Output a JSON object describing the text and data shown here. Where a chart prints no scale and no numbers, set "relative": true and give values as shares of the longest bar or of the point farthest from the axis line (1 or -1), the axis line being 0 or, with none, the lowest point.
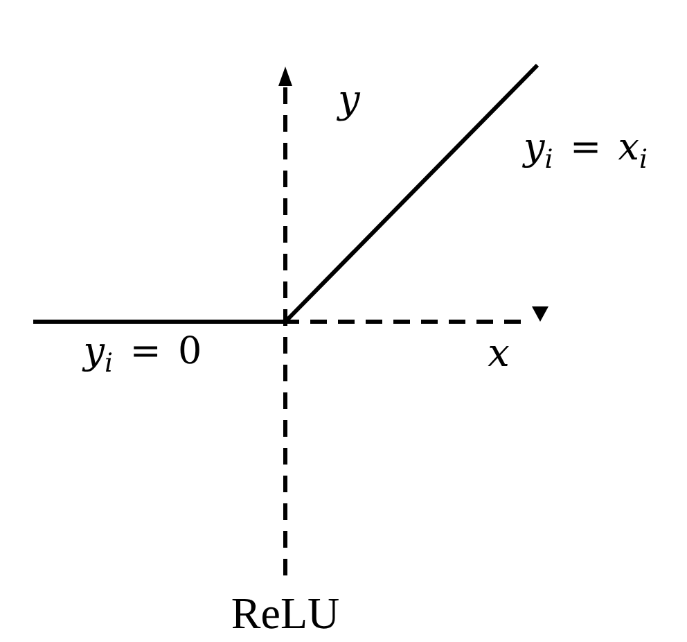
{
  "chart_data": {
    "type": "line",
    "title": "ReLU",
    "xlabel": "x",
    "ylabel": "y",
    "annotations": [
      "y$_{i}$ = x$_{i}$",
      "y$_{i}$ = 0"
    ],
    "categories": [
      null,
      null,
      null
    ],
    "relative": true,
    "marker": "none",
    "series": [
      {
        "color": "#000000",
        "values": [
          0,
          0,
          1
        ]
      }
    ]
  }
}
